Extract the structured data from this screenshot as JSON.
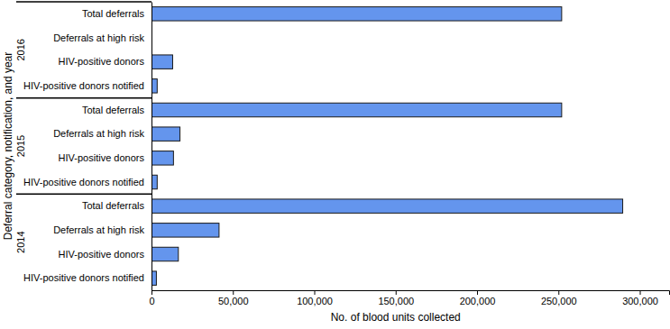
{
  "chart_data": {
    "type": "bar",
    "orientation": "horizontal",
    "color": "#6495ed",
    "x_label": "No. of blood units collected",
    "y_label": "Deferral category, notification, and year",
    "groups": [
      {
        "name": "2016",
        "categories": [
          "Total deferrals",
          "Deferrals at high risk",
          "HIV-positive donors",
          "HIV-positive donors notified"
        ],
        "values": [
          252000,
          null,
          13000,
          3500
        ]
      },
      {
        "name": "2015",
        "categories": [
          "Total deferrals",
          "Deferrals at high risk",
          "HIV-positive donors",
          "HIV-positive donors notified"
        ],
        "values": [
          252000,
          17500,
          13500,
          3500
        ]
      },
      {
        "name": "2014",
        "categories": [
          "Total deferrals",
          "Deferrals at high risk",
          "HIV-positive donors",
          "HIV-positive donors notified"
        ],
        "values": [
          289500,
          41500,
          16500,
          3000
        ]
      }
    ],
    "xlim": [
      0,
      318000
    ],
    "xticks": [
      0,
      {
        "value": 50000,
        "label": "50,000"
      },
      {
        "value": 100000,
        "label": "100,000"
      },
      {
        "value": 150000,
        "label": "150,000"
      },
      {
        "value": 200000,
        "label": "200,000"
      },
      {
        "value": 250000,
        "label": "250,000"
      },
      {
        "value": 300000,
        "label": "300,000"
      }
    ]
  }
}
